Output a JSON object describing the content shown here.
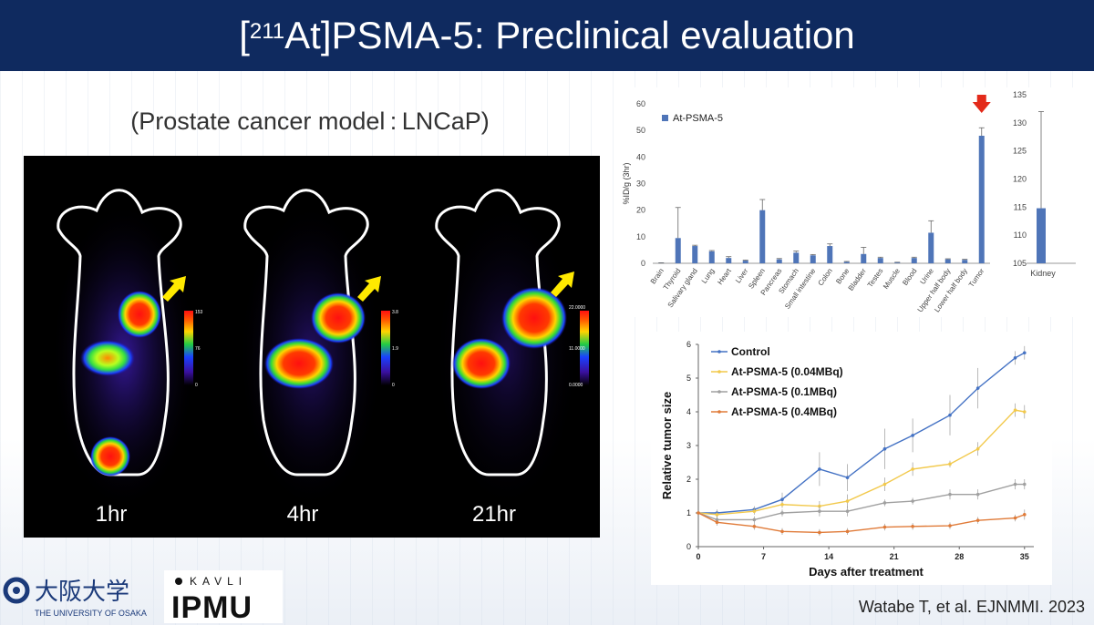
{
  "slide": {
    "title_prefix": "[",
    "title_sup": "211",
    "title_rest": "At]PSMA-5: Preclinical evaluation",
    "subtitle": "(Prostate cancer model : LNCaP)",
    "citation": "Watabe T, et al. EJNMMI. 2023"
  },
  "scan": {
    "timepoints": [
      "1hr",
      "4hr",
      "21hr"
    ],
    "scale_labels": [
      {
        "top": "153",
        "mid": "76",
        "bottom": "0"
      },
      {
        "top": "3.8",
        "mid": "1.9",
        "bottom": "0"
      },
      {
        "top": "22.0000",
        "mid": "11.0000",
        "bottom": "0.0000"
      }
    ]
  },
  "logos": {
    "osaka_jp": "大阪大学",
    "osaka_en": "THE UNIVERSITY OF OSAKA",
    "kavli_top": "KAVLI",
    "kavli_bottom": "IPMU"
  },
  "chart_data": [
    {
      "type": "bar",
      "title": "",
      "ylabel": "%ID/g (3hr)",
      "ylim": [
        0,
        60
      ],
      "yticks": [
        0,
        10,
        20,
        30,
        40,
        50,
        60
      ],
      "legend": "At-PSMA-5",
      "legend_position": "top-left",
      "color": "#4f75b8",
      "categories": [
        "Brain",
        "Thyroid",
        "Salivary gland",
        "Lung",
        "Heart",
        "Liver",
        "Spleen",
        "Pancreas",
        "Stomach",
        "Small intestine",
        "Colon",
        "Bone",
        "Bladder",
        "Testes",
        "Muscle",
        "Blood",
        "Urine",
        "Upper half body",
        "Lower half body",
        "Tumor"
      ],
      "values": [
        0.1,
        9.5,
        6.5,
        4.5,
        2,
        1,
        20,
        1.5,
        4,
        3,
        6.5,
        0.5,
        3.5,
        2,
        0.3,
        2,
        11.5,
        1.5,
        1.3,
        48
      ],
      "errors": [
        0.1,
        11.5,
        0.3,
        0.3,
        0.5,
        0.2,
        4,
        0.3,
        0.6,
        0.3,
        0.8,
        0.2,
        2.5,
        0.3,
        0.1,
        0.3,
        4.5,
        0.2,
        0.2,
        3
      ],
      "highlight_arrow": "Tumor"
    },
    {
      "type": "bar",
      "title": "",
      "ylim": [
        105,
        135
      ],
      "yticks": [
        105,
        110,
        115,
        120,
        125,
        130,
        135
      ],
      "color": "#4f75b8",
      "categories": [
        "Kidney"
      ],
      "values": [
        114.8
      ],
      "errors": [
        17.2
      ]
    },
    {
      "type": "line",
      "title": "",
      "xlabel": "Days after treatment",
      "ylabel": "Relative tumor size",
      "xlim": [
        0,
        36
      ],
      "ylim": [
        0,
        6
      ],
      "xticks": [
        0,
        7,
        14,
        21,
        28,
        35
      ],
      "yticks": [
        0,
        1,
        2,
        3,
        4,
        5,
        6
      ],
      "legend_position": "top-left",
      "series": [
        {
          "name": "Control",
          "color": "#4472c4",
          "x": [
            0,
            2,
            6,
            9,
            13,
            16,
            20,
            23,
            27,
            30,
            34,
            35
          ],
          "y": [
            1,
            1.0,
            1.1,
            1.4,
            2.3,
            2.05,
            2.9,
            3.3,
            3.9,
            4.7,
            5.6,
            5.75
          ],
          "err": [
            0.05,
            0.1,
            0.1,
            0.2,
            0.5,
            0.4,
            0.6,
            0.5,
            0.6,
            0.6,
            0.2,
            0.2
          ]
        },
        {
          "name": "At-PSMA-5 (0.04MBq)",
          "color": "#f2c94c",
          "x": [
            0,
            2,
            6,
            9,
            13,
            16,
            20,
            23,
            27,
            30,
            34,
            35
          ],
          "y": [
            1,
            0.95,
            1.05,
            1.25,
            1.2,
            1.35,
            1.85,
            2.3,
            2.45,
            2.9,
            4.05,
            4.0
          ],
          "err": [
            0.05,
            0.1,
            0.1,
            0.1,
            0.15,
            0.2,
            0.2,
            0.2,
            0.1,
            0.2,
            0.2,
            0.2
          ]
        },
        {
          "name": "At-PSMA-5 (0.1MBq)",
          "color": "#a0a0a0",
          "x": [
            0,
            2,
            6,
            9,
            13,
            16,
            20,
            23,
            27,
            30,
            34,
            35
          ],
          "y": [
            1,
            0.8,
            0.8,
            1.0,
            1.05,
            1.05,
            1.3,
            1.35,
            1.55,
            1.55,
            1.85,
            1.85
          ],
          "err": [
            0.05,
            0.1,
            0.1,
            0.1,
            0.15,
            0.15,
            0.1,
            0.1,
            0.15,
            0.15,
            0.15,
            0.15
          ]
        },
        {
          "name": "At-PSMA-5 (0.4MBq)",
          "color": "#e07b39",
          "x": [
            0,
            2,
            6,
            9,
            13,
            16,
            20,
            23,
            27,
            30,
            34,
            35
          ],
          "y": [
            1,
            0.72,
            0.6,
            0.45,
            0.42,
            0.45,
            0.58,
            0.6,
            0.62,
            0.78,
            0.85,
            0.95
          ],
          "err": [
            0.05,
            0.1,
            0.1,
            0.1,
            0.1,
            0.1,
            0.1,
            0.1,
            0.1,
            0.1,
            0.1,
            0.15
          ]
        }
      ]
    }
  ]
}
